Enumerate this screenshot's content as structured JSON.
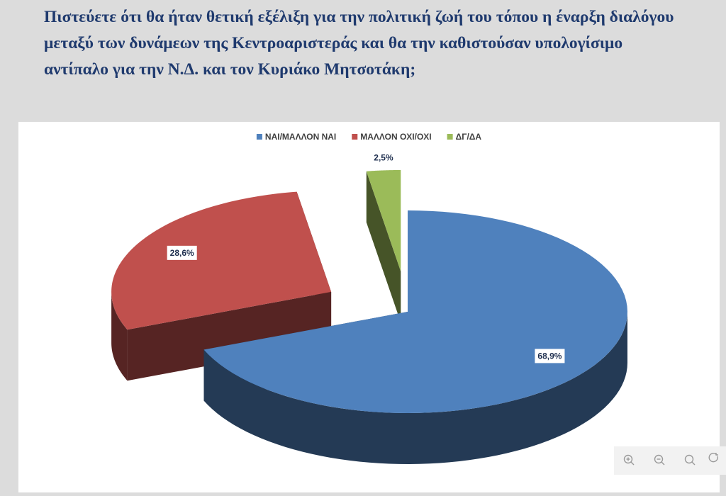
{
  "chart_data": {
    "type": "pie",
    "title": "Πιστεύετε ότι θα ήταν θετική εξέλιξη για την πολιτική ζωή του τόπου η έναρξη διαλόγου μεταξύ των δυνάμεων της Κεντροαριστεράς και θα την καθιστούσαν υπολογίσιμο αντίπαλο για την Ν.Δ. και τον Κυριάκο Μητσοτάκη;",
    "categories": [
      "ΝΑΙ/ΜΑΛΛΟΝ ΝΑΙ",
      "ΜΑΛΛΟΝ ΟΧΙ/ΟΧΙ",
      "ΔΓ/ΔΑ"
    ],
    "values": [
      68.9,
      28.6,
      2.5
    ],
    "value_labels": [
      "68,9%",
      "28,6%",
      "2,5%"
    ],
    "colors": [
      "#4f81bd",
      "#c0504d",
      "#9bbb59"
    ],
    "legend": "top"
  }
}
